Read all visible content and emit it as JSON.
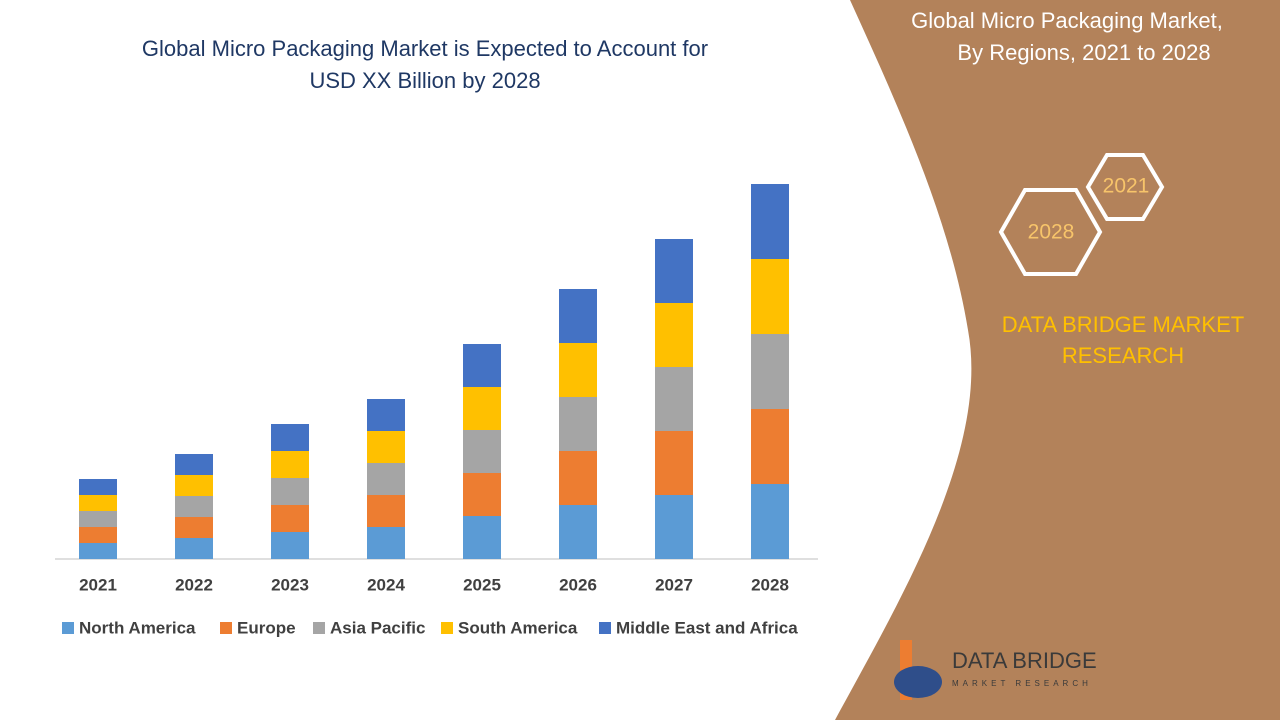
{
  "chart_data": {
    "type": "stacked-bar",
    "title": "Global Micro Packaging Market is Expected to Account for",
    "subtitle": "USD XX Billion by 2028",
    "categories": [
      "2021",
      "2022",
      "2023",
      "2024",
      "2025",
      "2026",
      "2027",
      "2028"
    ],
    "series": [
      {
        "name": "North America",
        "color": "#5b9bd5",
        "values": [
          16,
          21,
          27,
          32,
          43,
          54,
          64,
          75
        ]
      },
      {
        "name": "Europe",
        "color": "#ed7d31",
        "values": [
          16,
          21,
          27,
          32,
          43,
          54,
          64,
          75
        ]
      },
      {
        "name": "Asia Pacific",
        "color": "#a5a5a5",
        "values": [
          16,
          21,
          27,
          32,
          43,
          54,
          64,
          75
        ]
      },
      {
        "name": "South America",
        "color": "#ffc000",
        "values": [
          16,
          21,
          27,
          32,
          43,
          54,
          64,
          75
        ]
      },
      {
        "name": "Middle East and Africa",
        "color": "#4472c4",
        "values": [
          16,
          21,
          27,
          32,
          43,
          54,
          64,
          75
        ]
      }
    ],
    "ylim": [
      0,
      400
    ],
    "legend": "bottom"
  },
  "side_panel": {
    "title_line1": "Global Micro Packaging Market,",
    "title_line2": "By Regions, 2021 to 2028",
    "hex_start": "2021",
    "hex_end": "2028",
    "brand_line1": "DATA BRIDGE MARKET",
    "brand_line2": "RESEARCH"
  },
  "logo": {
    "name": "DATA BRIDGE",
    "tagline": "MARKET RESEARCH"
  }
}
